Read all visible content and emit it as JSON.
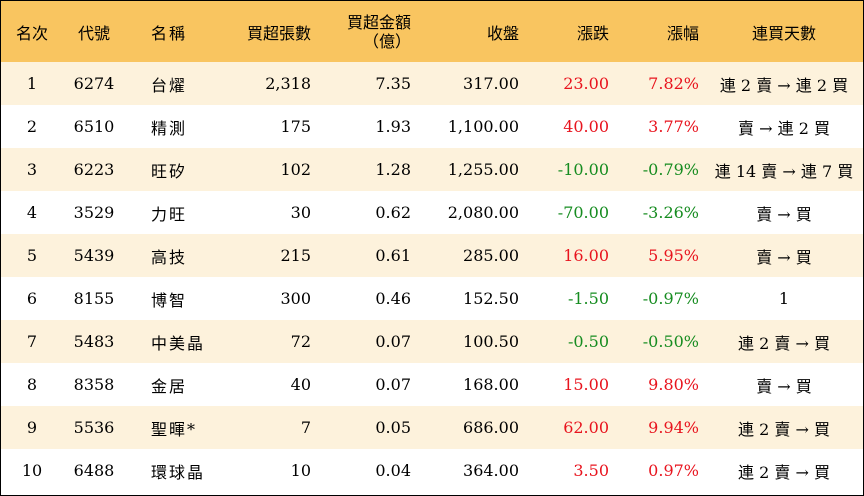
{
  "colors": {
    "header_bg": "#f9c560",
    "row_stripe": "#fdf2dc",
    "up": "#e8141e",
    "down": "#168c20"
  },
  "header": {
    "rank": "名次",
    "code": "代號",
    "name": "名稱",
    "buy_lots": "買超張數",
    "buy_amount_line1": "買超金額",
    "buy_amount_line2": "（億）",
    "close": "收盤",
    "change": "漲跌",
    "change_pct": "漲幅",
    "consecutive_days": "連買天數"
  },
  "rows": [
    {
      "rank": "1",
      "code": "6274",
      "name": "台燿",
      "buy_lots": "2,318",
      "buy_amount": "7.35",
      "close": "317.00",
      "change": "23.00",
      "change_pct": "7.82%",
      "direction": "up",
      "days": "連 2 賣 → 連 2 買"
    },
    {
      "rank": "2",
      "code": "6510",
      "name": "精測",
      "buy_lots": "175",
      "buy_amount": "1.93",
      "close": "1,100.00",
      "change": "40.00",
      "change_pct": "3.77%",
      "direction": "up",
      "days": "賣 → 連 2 買"
    },
    {
      "rank": "3",
      "code": "6223",
      "name": "旺矽",
      "buy_lots": "102",
      "buy_amount": "1.28",
      "close": "1,255.00",
      "change": "-10.00",
      "change_pct": "-0.79%",
      "direction": "down",
      "days": "連 14 賣 → 連 7 買"
    },
    {
      "rank": "4",
      "code": "3529",
      "name": "力旺",
      "buy_lots": "30",
      "buy_amount": "0.62",
      "close": "2,080.00",
      "change": "-70.00",
      "change_pct": "-3.26%",
      "direction": "down",
      "days": "賣 → 買"
    },
    {
      "rank": "5",
      "code": "5439",
      "name": "高技",
      "buy_lots": "215",
      "buy_amount": "0.61",
      "close": "285.00",
      "change": "16.00",
      "change_pct": "5.95%",
      "direction": "up",
      "days": "賣 → 買"
    },
    {
      "rank": "6",
      "code": "8155",
      "name": "博智",
      "buy_lots": "300",
      "buy_amount": "0.46",
      "close": "152.50",
      "change": "-1.50",
      "change_pct": "-0.97%",
      "direction": "down",
      "days": "1"
    },
    {
      "rank": "7",
      "code": "5483",
      "name": "中美晶",
      "buy_lots": "72",
      "buy_amount": "0.07",
      "close": "100.50",
      "change": "-0.50",
      "change_pct": "-0.50%",
      "direction": "down",
      "days": "連 2 賣 → 買"
    },
    {
      "rank": "8",
      "code": "8358",
      "name": "金居",
      "buy_lots": "40",
      "buy_amount": "0.07",
      "close": "168.00",
      "change": "15.00",
      "change_pct": "9.80%",
      "direction": "up",
      "days": "賣 → 買"
    },
    {
      "rank": "9",
      "code": "5536",
      "name": "聖暉*",
      "buy_lots": "7",
      "buy_amount": "0.05",
      "close": "686.00",
      "change": "62.00",
      "change_pct": "9.94%",
      "direction": "up",
      "days": "連 2 賣 → 買"
    },
    {
      "rank": "10",
      "code": "6488",
      "name": "環球晶",
      "buy_lots": "10",
      "buy_amount": "0.04",
      "close": "364.00",
      "change": "3.50",
      "change_pct": "0.97%",
      "direction": "up",
      "days": "連 2 賣 → 買"
    }
  ]
}
